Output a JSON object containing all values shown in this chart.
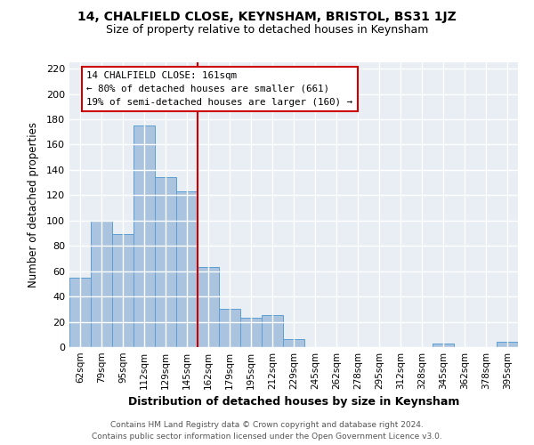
{
  "title": "14, CHALFIELD CLOSE, KEYNSHAM, BRISTOL, BS31 1JZ",
  "subtitle": "Size of property relative to detached houses in Keynsham",
  "xlabel": "Distribution of detached houses by size in Keynsham",
  "ylabel": "Number of detached properties",
  "footer_line1": "Contains HM Land Registry data © Crown copyright and database right 2024.",
  "footer_line2": "Contains public sector information licensed under the Open Government Licence v3.0.",
  "bar_labels": [
    "62sqm",
    "79sqm",
    "95sqm",
    "112sqm",
    "129sqm",
    "145sqm",
    "162sqm",
    "179sqm",
    "195sqm",
    "212sqm",
    "229sqm",
    "245sqm",
    "262sqm",
    "278sqm",
    "295sqm",
    "312sqm",
    "328sqm",
    "345sqm",
    "362sqm",
    "378sqm",
    "395sqm"
  ],
  "bar_values": [
    55,
    100,
    89,
    175,
    134,
    123,
    63,
    30,
    23,
    25,
    6,
    0,
    0,
    0,
    0,
    0,
    0,
    3,
    0,
    0,
    4
  ],
  "bar_color": "#aac4e0",
  "bar_edge_color": "#5a9fd4",
  "ylim": [
    0,
    225
  ],
  "yticks": [
    0,
    20,
    40,
    60,
    80,
    100,
    120,
    140,
    160,
    180,
    200,
    220
  ],
  "property_label": "14 CHALFIELD CLOSE: 161sqm",
  "annotation_line1": "← 80% of detached houses are smaller (661)",
  "annotation_line2": "19% of semi-detached houses are larger (160) →",
  "vline_color": "#cc0000",
  "annotation_box_edge": "#cc0000",
  "vline_x_index": 6,
  "background_color": "#ffffff",
  "plot_bg_color": "#e8eef4"
}
